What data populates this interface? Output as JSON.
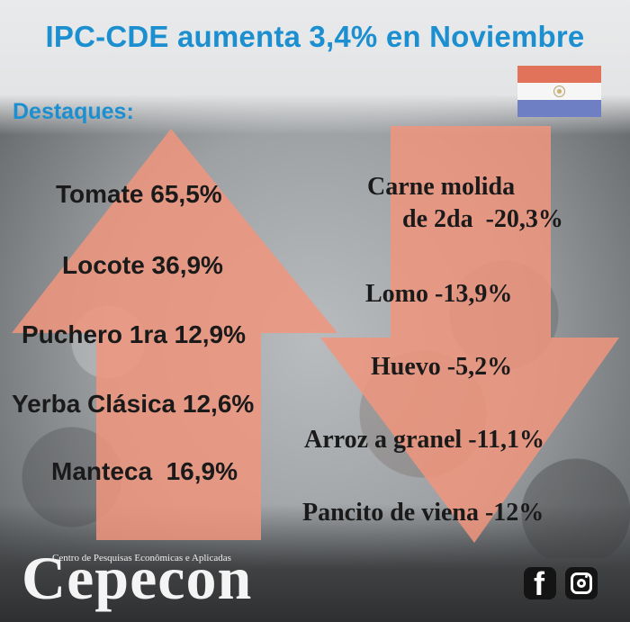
{
  "title": "IPC-CDE aumenta 3,4% en Noviembre",
  "subtitle": "Destaques:",
  "increases": [
    "Tomate 65,5%",
    "Locote 36,9%",
    "Puchero 1ra 12,9%",
    "Yerba Clásica 12,6%",
    "Manteca  16,9%"
  ],
  "decreases": [
    "Carne molida",
    "de 2da  -20,3%",
    "Lomo -13,9%",
    "Huevo -5,2%",
    "Arroz a granel -11,1%",
    "Pancito de viena -12%"
  ],
  "brand": {
    "tagline": "Centro de Pesquisas Econômicas e Aplicadas",
    "name": "Cepecon"
  },
  "social": {
    "facebook_icon": "facebook-icon",
    "instagram_icon": "instagram-icon"
  },
  "colors": {
    "title_blue": "#1c8fd0",
    "arrow_salmon": "#f0957c",
    "flag_red": "#e2735b",
    "flag_blue": "#6f7fc4"
  }
}
